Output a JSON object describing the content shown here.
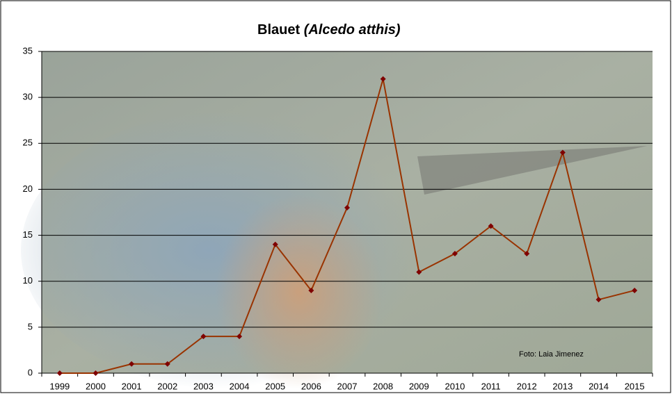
{
  "chart_data": {
    "type": "line",
    "title": "Blauet",
    "subtitle": "(Alcedo atthis)",
    "annotation": "Foto: Laia Jimenez",
    "categories": [
      "1999",
      "2000",
      "2001",
      "2002",
      "2003",
      "2004",
      "2005",
      "2006",
      "2007",
      "2008",
      "2009",
      "2010",
      "2011",
      "2012",
      "2013",
      "2014",
      "2015"
    ],
    "values": [
      0,
      0,
      1,
      1,
      4,
      4,
      14,
      9,
      18,
      32,
      11,
      13,
      16,
      13,
      24,
      8,
      9
    ],
    "color": "#993300",
    "marker_color": "#7f0000",
    "ylim": [
      0,
      35
    ],
    "yticks": [
      0,
      5,
      10,
      15,
      20,
      25,
      30,
      35
    ],
    "grid": true
  }
}
